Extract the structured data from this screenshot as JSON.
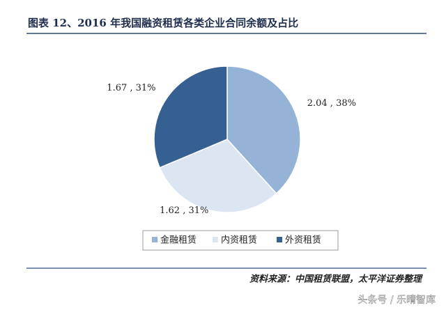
{
  "chart_data": {
    "type": "pie",
    "title": "图表 12、2016 年我国融资租赁各类企业合同余额及占比",
    "categories": [
      "金融租赁",
      "内资租赁",
      "外资租赁"
    ],
    "values": [
      2.04,
      1.62,
      1.67
    ],
    "value_labels": [
      "2.04 , 38%",
      "1.62 , 31%",
      "1.67 , 31%"
    ],
    "colors": [
      "#95b3d7",
      "#dce6f2",
      "#376092"
    ],
    "source": "资料来源：中国租赁联盟，太平洋证券整理",
    "watermark": "头条号 / 乐晴智库"
  }
}
